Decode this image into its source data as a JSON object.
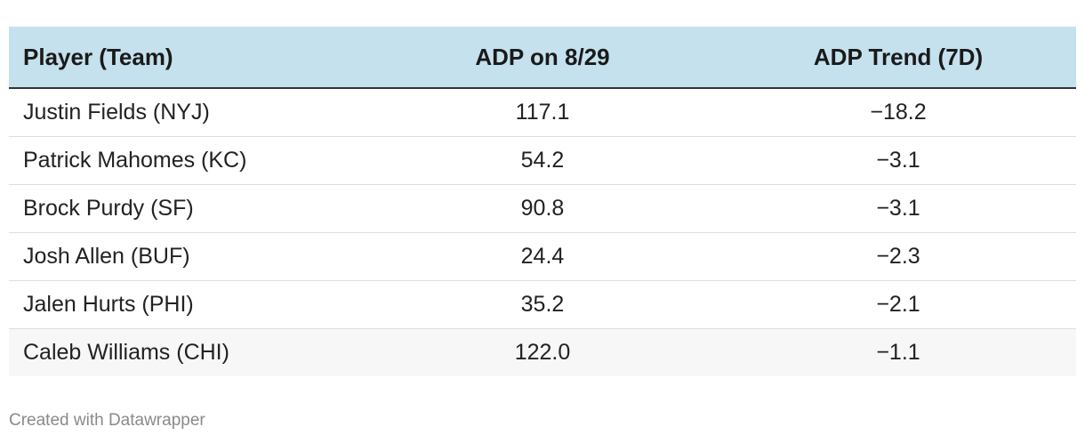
{
  "table": {
    "header": [
      "Player (Team)",
      "ADP on 8/29",
      "ADP Trend (7D)"
    ],
    "rows": [
      [
        "Justin Fields (NYJ)",
        "117.1",
        "−18.2"
      ],
      [
        "Patrick Mahomes (KC)",
        "54.2",
        "−3.1"
      ],
      [
        "Brock Purdy (SF)",
        "90.8",
        "−3.1"
      ],
      [
        "Josh Allen (BUF)",
        "24.4",
        "−2.3"
      ],
      [
        "Jalen Hurts (PHI)",
        "35.2",
        "−2.1"
      ],
      [
        "Caleb Williams (CHI)",
        "122.0",
        "−1.1"
      ]
    ]
  },
  "footer": "Created with Datawrapper"
}
